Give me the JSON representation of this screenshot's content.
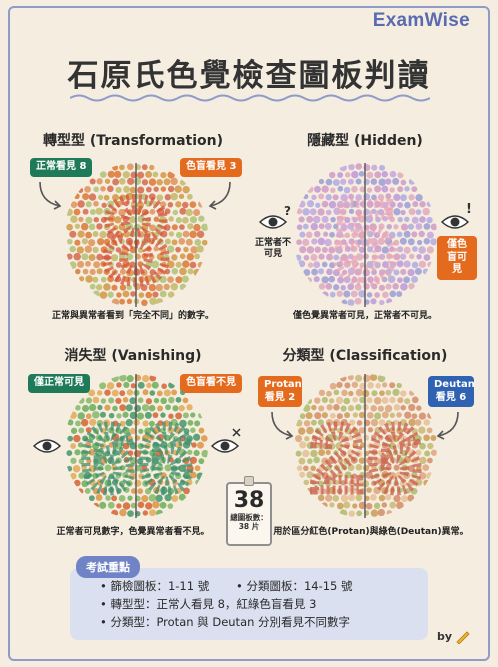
{
  "brand": "ExamWise",
  "title": "石原氏色覺檢查圖板判讀",
  "sections": {
    "transformation": {
      "title": "轉型型 (Transformation)",
      "tag_left": "正常看見 8",
      "tag_right": "色盲看見 3",
      "caption": "正常與異常者看到「完全不同」的數字。",
      "colors": {
        "tag_left": "#1f7a5a",
        "tag_right": "#e46a1e"
      }
    },
    "hidden": {
      "title": "隱藏型 (Hidden)",
      "label_left": "正常者不可見",
      "tag_right": "僅色盲可見",
      "caption": "僅色覺異常者可見，正常者不可見。",
      "colors": {
        "tag_right": "#e46a1e"
      }
    },
    "vanishing": {
      "title": "消失型 (Vanishing)",
      "tag_left": "僅正常可見",
      "tag_right": "色盲看不見",
      "caption": "正常者可見數字，色覺異常者看不見。",
      "colors": {
        "tag_left": "#1f7a5a",
        "tag_right": "#e46a1e"
      }
    },
    "classification": {
      "title": "分類型 (Classification)",
      "tag_left": "Protan 看見 2",
      "tag_right": "Deutan 看見 6",
      "caption": "用於區分紅色(Protan)與綠色(Deutan)異常。",
      "colors": {
        "tag_left": "#e46a1e",
        "tag_right": "#2f62b0"
      }
    }
  },
  "calendar": {
    "number": "38",
    "label": "總圖板數：38 片"
  },
  "exam": {
    "heading": "考試重點",
    "line1a": "• 篩檢圖板：1-11 號",
    "line1b": "• 分類圖板：14-15 號",
    "line2": "• 轉型型：正常人看見 8，紅綠色盲看見 3",
    "line3": "• 分類型：Protan 與 Deutan 分別看見不同數字"
  },
  "footer": {
    "by": "by"
  },
  "icons": [
    "eye-icon",
    "question-mark-icon",
    "exclamation-icon",
    "cross-icon",
    "arrow-icon",
    "pencil-icon"
  ]
}
